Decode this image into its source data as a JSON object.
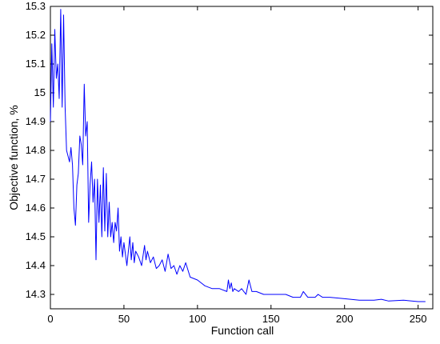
{
  "chart_data": {
    "type": "line",
    "title": "",
    "xlabel": "Function call",
    "ylabel": "Objective function, %",
    "xlim": [
      0,
      260
    ],
    "ylim": [
      14.25,
      15.3
    ],
    "xticks": [
      0,
      50,
      100,
      150,
      200,
      250
    ],
    "yticks": [
      14.3,
      14.4,
      14.5,
      14.6,
      14.7,
      14.8,
      14.9,
      15,
      15.1,
      15.2,
      15.3
    ],
    "grid": false,
    "series": [
      {
        "color": "#0000ff",
        "x": [
          0,
          1,
          2,
          3,
          4,
          5,
          6,
          7,
          8,
          9,
          10,
          11,
          12,
          13,
          14,
          15,
          16,
          17,
          18,
          19,
          20,
          21,
          22,
          23,
          24,
          25,
          26,
          27,
          28,
          29,
          30,
          31,
          32,
          33,
          34,
          35,
          36,
          37,
          38,
          39,
          40,
          41,
          42,
          43,
          44,
          45,
          46,
          47,
          48,
          49,
          50,
          52,
          54,
          55,
          56,
          57,
          58,
          60,
          62,
          64,
          65,
          66,
          68,
          70,
          72,
          74,
          76,
          78,
          80,
          82,
          84,
          86,
          88,
          90,
          92,
          95,
          100,
          105,
          110,
          115,
          120,
          121,
          122,
          123,
          124,
          125,
          128,
          130,
          133,
          135,
          137,
          140,
          145,
          150,
          155,
          160,
          165,
          170,
          172,
          175,
          180,
          182,
          185,
          190,
          200,
          210,
          220,
          225,
          230,
          240,
          250,
          255
        ],
        "values": [
          14.9,
          15.17,
          14.95,
          15.22,
          15.05,
          15.1,
          14.98,
          15.29,
          14.95,
          15.27,
          14.95,
          14.8,
          14.78,
          14.76,
          14.81,
          14.75,
          14.6,
          14.54,
          14.68,
          14.72,
          14.85,
          14.82,
          14.75,
          15.03,
          14.85,
          14.9,
          14.55,
          14.68,
          14.76,
          14.62,
          14.7,
          14.42,
          14.7,
          14.55,
          14.68,
          14.5,
          14.74,
          14.52,
          14.72,
          14.5,
          14.62,
          14.5,
          14.55,
          14.48,
          14.55,
          14.52,
          14.6,
          14.45,
          14.5,
          14.43,
          14.48,
          14.4,
          14.5,
          14.42,
          14.48,
          14.41,
          14.45,
          14.43,
          14.4,
          14.47,
          14.42,
          14.45,
          14.41,
          14.43,
          14.39,
          14.4,
          14.42,
          14.38,
          14.44,
          14.39,
          14.4,
          14.37,
          14.4,
          14.38,
          14.41,
          14.36,
          14.35,
          14.33,
          14.32,
          14.32,
          14.31,
          14.35,
          14.32,
          14.34,
          14.31,
          14.32,
          14.31,
          14.32,
          14.3,
          14.35,
          14.31,
          14.31,
          14.3,
          14.3,
          14.3,
          14.3,
          14.29,
          14.29,
          14.31,
          14.29,
          14.29,
          14.3,
          14.29,
          14.29,
          14.285,
          14.28,
          14.28,
          14.283,
          14.277,
          14.28,
          14.275,
          14.275
        ]
      }
    ]
  }
}
